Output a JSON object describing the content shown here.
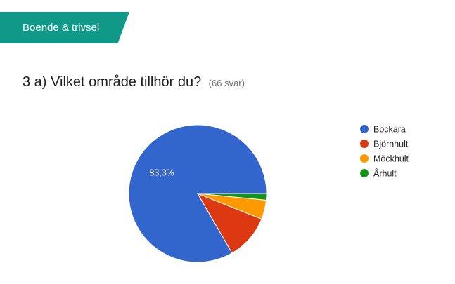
{
  "section": {
    "label": "Boende & trivsel"
  },
  "question": {
    "title": "3 a) Vilket område tillhör du?",
    "response_count": "(66 svar)"
  },
  "chart_data": {
    "type": "pie",
    "categories": [
      "Bockara",
      "Björnhult",
      "Möckhult",
      "Århult"
    ],
    "values": [
      55,
      7,
      3,
      1
    ],
    "percent_labels": [
      "83,3%",
      "",
      "",
      ""
    ],
    "colors": [
      "#3366cc",
      "#dc3912",
      "#ff9900",
      "#109618"
    ],
    "legend_position": "right",
    "title": "",
    "grid": false
  }
}
